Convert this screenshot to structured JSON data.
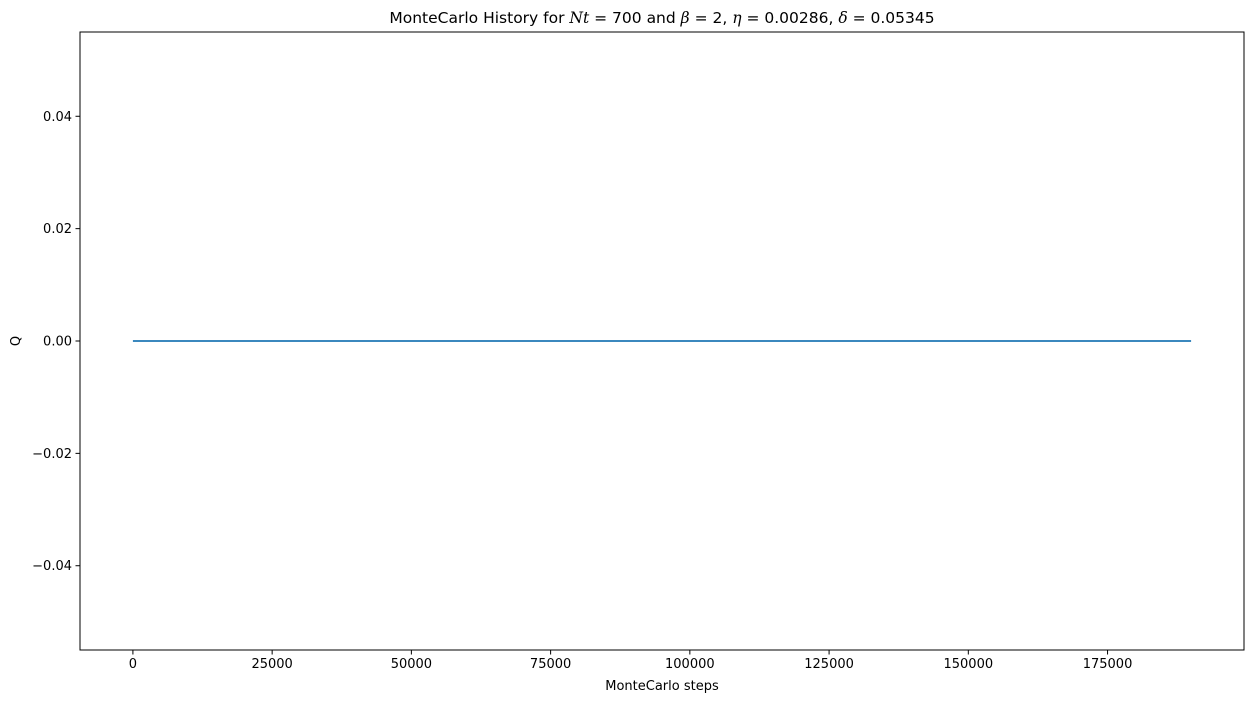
{
  "chart_data": {
    "type": "line",
    "title": {
      "prefix": "MonteCarlo History for ",
      "nt_symbol": "Nt",
      "nt_value": "700",
      "and_word": "and",
      "beta_symbol": "β",
      "beta_value": "2",
      "eta_symbol": "η",
      "eta_value": "0.00286",
      "delta_symbol": "δ",
      "delta_value": "0.05345"
    },
    "xlabel": "MonteCarlo steps",
    "ylabel": "Q",
    "xlim": [
      -9500,
      199500
    ],
    "ylim": [
      -0.055,
      0.055
    ],
    "x_ticks": [
      0,
      25000,
      50000,
      75000,
      100000,
      125000,
      150000,
      175000
    ],
    "x_tick_labels": [
      "0",
      "25000",
      "50000",
      "75000",
      "100000",
      "125000",
      "150000",
      "175000"
    ],
    "y_ticks": [
      -0.04,
      -0.02,
      0.0,
      0.02,
      0.04
    ],
    "y_tick_labels": [
      "−0.04",
      "−0.02",
      "0.00",
      "0.02",
      "0.04"
    ],
    "grid": false,
    "legend": "none",
    "series": [
      {
        "color": "#1f77b4",
        "x": [
          0,
          190000
        ],
        "y": [
          0,
          0
        ]
      }
    ]
  }
}
